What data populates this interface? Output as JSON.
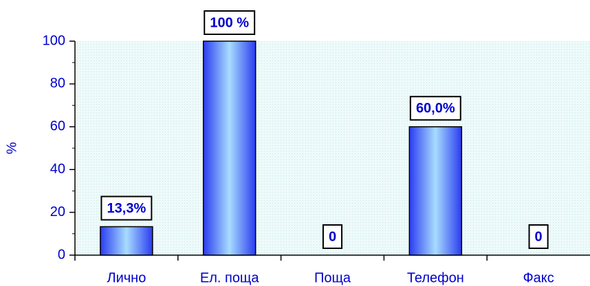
{
  "chart_data": {
    "type": "bar",
    "y_label": "%",
    "categories": [
      "Лично",
      "Ел. поща",
      "Поща",
      "Телефон",
      "Факс"
    ],
    "values": [
      13.3,
      100,
      0,
      60,
      0
    ],
    "value_labels": [
      "13,3%",
      "100 %",
      "0",
      "60,0%",
      "0"
    ],
    "color": "#2a3cf0",
    "ylim": [
      0,
      100
    ],
    "yticks": [
      0,
      20,
      40,
      60,
      80,
      100
    ],
    "yticks_minor": [
      10,
      30,
      50,
      70,
      90
    ]
  }
}
